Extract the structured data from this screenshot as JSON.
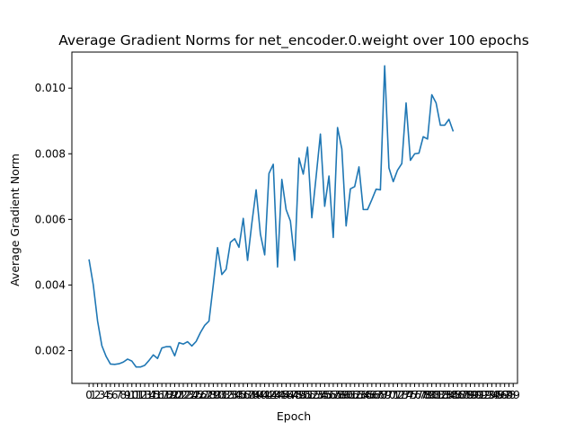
{
  "chart_data": {
    "type": "line",
    "title": "Average Gradient Norms for net_encoder.0.weight over 100 epochs",
    "xlabel": "Epoch",
    "ylabel": "Average Gradient Norm",
    "xlim": [
      -4,
      100
    ],
    "ylim": [
      0.001,
      0.0111
    ],
    "xticks": [
      0,
      1,
      2,
      3,
      4,
      5,
      6,
      7,
      8,
      9,
      10,
      11,
      12,
      13,
      14,
      15,
      16,
      17,
      18,
      19,
      20,
      21,
      22,
      23,
      24,
      25,
      26,
      27,
      28,
      29,
      30,
      31,
      32,
      33,
      34,
      35,
      36,
      37,
      38,
      39,
      40,
      41,
      42,
      43,
      44,
      45,
      46,
      47,
      48,
      49,
      50,
      51,
      52,
      53,
      54,
      55,
      56,
      57,
      58,
      59,
      60,
      61,
      62,
      63,
      64,
      65,
      66,
      67,
      68,
      69,
      70,
      71,
      72,
      73,
      74,
      75,
      76,
      77,
      78,
      79,
      80,
      81,
      82,
      83,
      84,
      85,
      86,
      87,
      88,
      89,
      90,
      91,
      92,
      93,
      94,
      95,
      96,
      97,
      98,
      99
    ],
    "yticks": [
      0.002,
      0.004,
      0.006,
      0.008,
      0.01
    ],
    "ytick_labels": [
      "0.002",
      "0.004",
      "0.006",
      "0.008",
      "0.010"
    ],
    "grid": false,
    "series": [
      {
        "color": "#1f77b4",
        "x": [
          0,
          1,
          2,
          3,
          4,
          5,
          6,
          7,
          8,
          9,
          10,
          11,
          12,
          13,
          14,
          15,
          16,
          17,
          18,
          19,
          20,
          21,
          22,
          23,
          24,
          25,
          26,
          27,
          28,
          29,
          30,
          31,
          32,
          33,
          34,
          35,
          36,
          37,
          38,
          39,
          40,
          41,
          42,
          43,
          44,
          45,
          46,
          47,
          48,
          49,
          50,
          51,
          52,
          53,
          54,
          55,
          56,
          57,
          58,
          59,
          60,
          61,
          62,
          63,
          64,
          65,
          66,
          67,
          68,
          69,
          70,
          71,
          72,
          73,
          74,
          75,
          76,
          77,
          78,
          79,
          80,
          81,
          82,
          83,
          84,
          85
        ],
        "y": [
          0.00478,
          0.004,
          0.0029,
          0.00215,
          0.00182,
          0.00159,
          0.00158,
          0.0016,
          0.00165,
          0.00174,
          0.00168,
          0.0015,
          0.0015,
          0.00155,
          0.0017,
          0.00187,
          0.00176,
          0.00208,
          0.00212,
          0.00212,
          0.00184,
          0.00224,
          0.0022,
          0.00227,
          0.00214,
          0.00228,
          0.00255,
          0.00277,
          0.0029,
          0.004,
          0.00514,
          0.00432,
          0.00448,
          0.0053,
          0.00541,
          0.00515,
          0.00603,
          0.00475,
          0.00588,
          0.0069,
          0.00555,
          0.00492,
          0.0074,
          0.00768,
          0.00455,
          0.00722,
          0.0063,
          0.00595,
          0.00475,
          0.00787,
          0.00738,
          0.0082,
          0.00605,
          0.0073,
          0.0086,
          0.0064,
          0.00732,
          0.00545,
          0.0088,
          0.00815,
          0.0058,
          0.00693,
          0.007,
          0.0076,
          0.0063,
          0.0063,
          0.0066,
          0.00692,
          0.0069,
          0.01068,
          0.00757,
          0.00715,
          0.0075,
          0.0077,
          0.00955,
          0.0078,
          0.008,
          0.00802,
          0.00852,
          0.00845,
          0.0098,
          0.00955,
          0.00887,
          0.00887,
          0.00905,
          0.00868
        ]
      }
    ]
  }
}
